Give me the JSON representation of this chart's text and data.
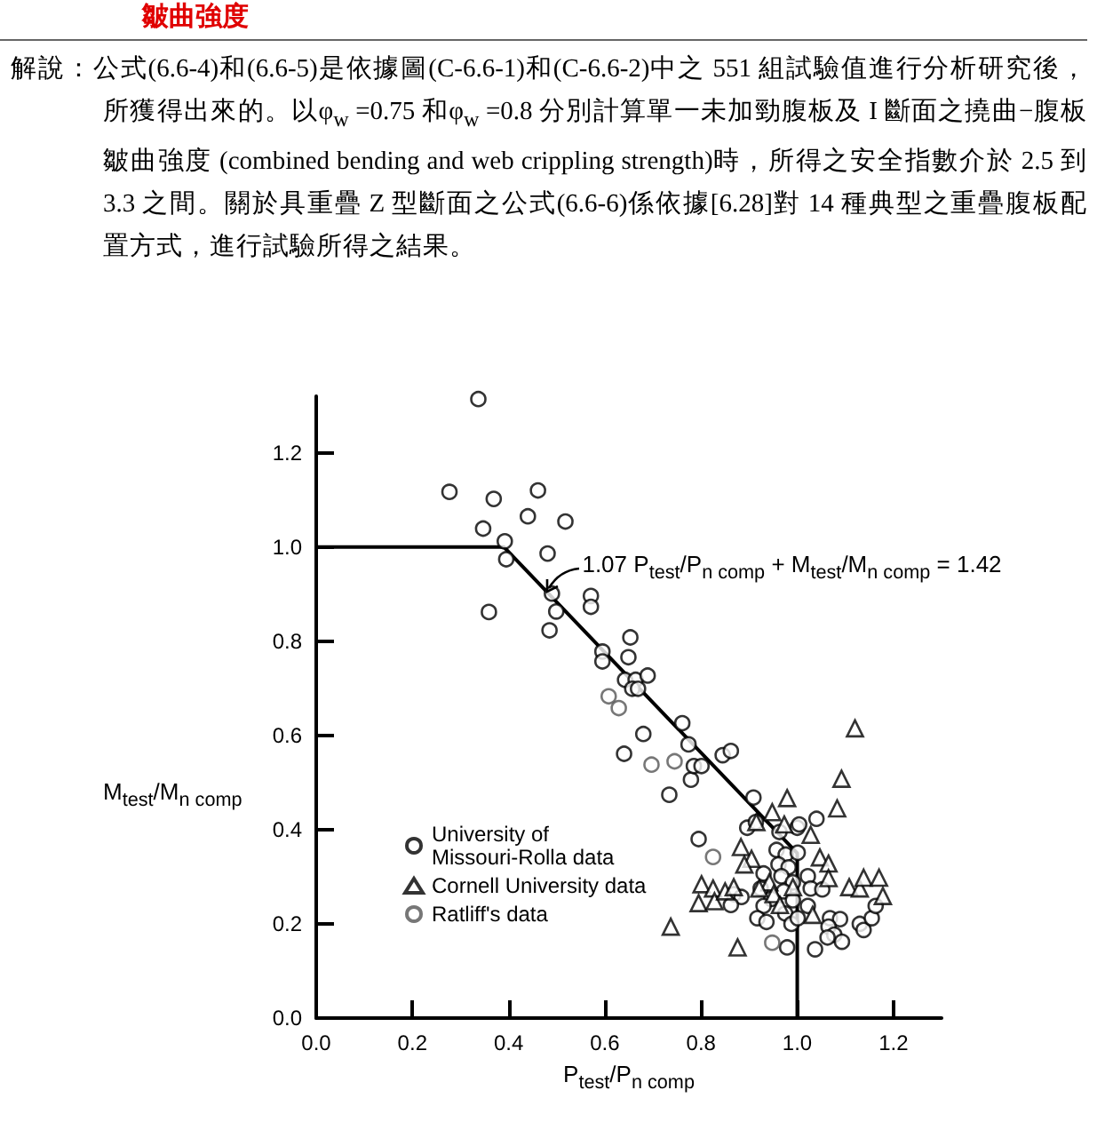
{
  "chart_data": {
    "type": "scatter",
    "title": "皺曲強度",
    "annotations": [
      "解說：公式(6.6-4)和(6.6-5)是依據圖(C-6.6-1)和(C-6.6-2)中之 551 組試驗值進行分析研究後，所獲得出來的。以φ$_{w}$ =0.75 和φ$_{w}$ =0.8 分別計算單一未加勁腹板及 I 斷面之撓曲−腹板皺曲強度 (combined bending and web crippling strength)時，所得之安全指數介於 2.5 到 3.3 之間。關於具重疊 Z 型斷面之公式(6.6-6)係依據[6.28]對 14 種典型之重疊腹板配置方式，進行試驗所得之結果。",
      "1.07 P$_{test}$/P$_{n comp}$ + M$_{test}$/M$_{n comp}$ = 1.42"
    ],
    "xlabel": "P$_{test}$/P$_{n comp}$",
    "ylabel": "M$_{test}$/M$_{n comp}$",
    "xlim": [
      0,
      1.3
    ],
    "ylim": [
      0,
      1.32
    ],
    "xticks": [
      {
        "value": 0,
        "label": "0.0"
      },
      0.2,
      0.4,
      0.6,
      0.8,
      {
        "value": 1,
        "label": "1.0"
      },
      1.2
    ],
    "yticks": [
      {
        "value": 0,
        "label": "0.0"
      },
      0.2,
      0.4,
      0.6,
      0.8,
      {
        "value": 1,
        "label": "1.0"
      },
      1.2
    ],
    "grid": false,
    "legend": "left",
    "series": [
      {
        "name": "University of Missouri-Rolla data",
        "color": "#000000",
        "marker": "circle",
        "x": [
          0.337,
          0.277,
          0.369,
          0.461,
          0.44,
          0.518,
          0.347,
          0.392,
          0.481,
          0.395,
          0.359,
          0.49,
          0.499,
          0.485,
          0.571,
          0.571,
          0.595,
          0.595,
          0.653,
          0.649,
          0.642,
          0.664,
          0.657,
          0.669,
          0.689,
          0.68,
          0.761,
          0.774,
          0.64,
          0.734,
          0.779,
          0.785,
          0.801,
          0.845,
          0.862,
          0.909,
          0.795,
          0.896,
          0.914,
          0.963,
          1.0,
          1.04,
          0.957,
          0.976,
          1.001,
          0.961,
          0.982,
          0.93,
          0.967,
          1.022,
          0.991,
          0.924,
          0.972,
          1.028,
          1.052,
          0.868,
          0.884,
          0.862,
          0.946,
          0.991,
          0.93,
          1.022,
          0.917,
          0.936,
          0.975,
          0.988,
          1.001,
          1.068,
          1.089,
          1.065,
          1.077,
          1.093,
          1.063,
          1.13,
          1.138,
          1.155,
          1.163,
          0.979,
          1.037,
          1.004
        ],
        "values": [
          1.314,
          1.117,
          1.102,
          1.12,
          1.065,
          1.054,
          1.039,
          1.012,
          0.986,
          0.974,
          0.862,
          0.901,
          0.863,
          0.823,
          0.896,
          0.873,
          0.778,
          0.757,
          0.808,
          0.766,
          0.718,
          0.718,
          0.699,
          0.699,
          0.727,
          0.603,
          0.626,
          0.581,
          0.561,
          0.474,
          0.506,
          0.535,
          0.535,
          0.558,
          0.567,
          0.468,
          0.38,
          0.404,
          0.416,
          0.395,
          0.404,
          0.423,
          0.357,
          0.347,
          0.351,
          0.326,
          0.32,
          0.307,
          0.301,
          0.301,
          0.288,
          0.275,
          0.269,
          0.275,
          0.273,
          0.263,
          0.257,
          0.24,
          0.253,
          0.25,
          0.238,
          0.238,
          0.212,
          0.204,
          0.222,
          0.2,
          0.212,
          0.212,
          0.21,
          0.194,
          0.177,
          0.162,
          0.171,
          0.2,
          0.187,
          0.212,
          0.238,
          0.15,
          0.146,
          0.411
        ]
      },
      {
        "name": "Cornell University data",
        "color": "#000000",
        "marker": "triangle",
        "x": [
          0.737,
          0.876,
          0.801,
          0.825,
          0.795,
          0.828,
          0.85,
          0.868,
          0.883,
          0.905,
          0.89,
          0.915,
          0.948,
          0.973,
          1.028,
          1.047,
          1.065,
          1.065,
          0.942,
          0.921,
          0.991,
          0.951,
          1.032,
          1.108,
          1.13,
          1.138,
          1.17,
          1.178,
          1.083,
          0.964,
          1.12,
          1.092,
          0.979
        ],
        "values": [
          0.194,
          0.15,
          0.284,
          0.275,
          0.244,
          0.248,
          0.269,
          0.278,
          0.363,
          0.338,
          0.326,
          0.416,
          0.437,
          0.411,
          0.389,
          0.341,
          0.328,
          0.297,
          0.288,
          0.275,
          0.278,
          0.263,
          0.219,
          0.278,
          0.275,
          0.298,
          0.298,
          0.259,
          0.445,
          0.24,
          0.615,
          0.508,
          0.467
        ]
      },
      {
        "name": "Ratliff's data",
        "color": "#555555",
        "marker": "circle",
        "x": [
          0.608,
          0.629,
          0.697,
          0.745,
          0.825,
          0.948
        ],
        "values": [
          0.683,
          0.658,
          0.538,
          0.545,
          0.342,
          0.16
        ]
      },
      {
        "type": "line",
        "color": "#000000",
        "marker": "none",
        "line_style": "solid",
        "x": [
          0,
          0.39,
          1.0,
          1.0
        ],
        "values": [
          1.0,
          1.0,
          0.35,
          0
        ]
      }
    ]
  }
}
